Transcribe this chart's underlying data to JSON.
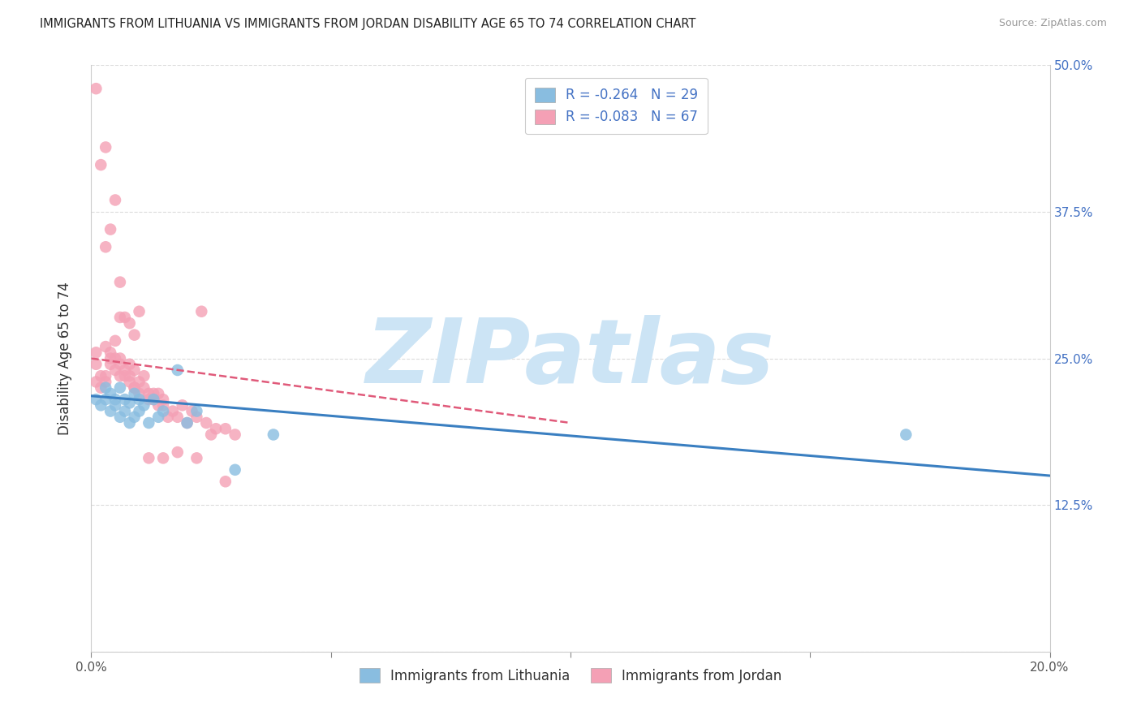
{
  "title": "IMMIGRANTS FROM LITHUANIA VS IMMIGRANTS FROM JORDAN DISABILITY AGE 65 TO 74 CORRELATION CHART",
  "source": "Source: ZipAtlas.com",
  "ylabel": "Disability Age 65 to 74",
  "legend_label_blue": "Immigrants from Lithuania",
  "legend_label_pink": "Immigrants from Jordan",
  "R_blue": -0.264,
  "N_blue": 29,
  "R_pink": -0.083,
  "N_pink": 67,
  "xmin": 0.0,
  "xmax": 0.2,
  "ymin": 0.0,
  "ymax": 0.5,
  "yticks": [
    0.0,
    0.125,
    0.25,
    0.375,
    0.5
  ],
  "xticks": [
    0.0,
    0.05,
    0.1,
    0.15,
    0.2
  ],
  "ytick_labels_right": [
    "",
    "12.5%",
    "25.0%",
    "37.5%",
    "50.0%"
  ],
  "color_blue": "#89bde0",
  "color_pink": "#f4a0b5",
  "line_color_blue": "#3a7fc1",
  "line_color_pink": "#e05a7a",
  "watermark_color": "#cce4f5",
  "watermark_text": "ZIPatlas",
  "background_color": "#ffffff",
  "grid_color": "#cccccc",
  "blue_line_x0": 0.0,
  "blue_line_y0": 0.218,
  "blue_line_x1": 0.2,
  "blue_line_y1": 0.15,
  "pink_line_x0": 0.0,
  "pink_line_y0": 0.25,
  "pink_line_x1": 0.1,
  "pink_line_y1": 0.195,
  "blue_points_x": [
    0.001,
    0.002,
    0.003,
    0.003,
    0.004,
    0.004,
    0.005,
    0.005,
    0.006,
    0.006,
    0.007,
    0.007,
    0.008,
    0.008,
    0.009,
    0.009,
    0.01,
    0.01,
    0.011,
    0.012,
    0.013,
    0.014,
    0.015,
    0.018,
    0.02,
    0.022,
    0.03,
    0.038,
    0.17
  ],
  "blue_points_y": [
    0.215,
    0.21,
    0.225,
    0.215,
    0.22,
    0.205,
    0.215,
    0.21,
    0.225,
    0.2,
    0.215,
    0.205,
    0.212,
    0.195,
    0.22,
    0.2,
    0.215,
    0.205,
    0.21,
    0.195,
    0.215,
    0.2,
    0.205,
    0.24,
    0.195,
    0.205,
    0.155,
    0.185,
    0.185
  ],
  "pink_points_x": [
    0.001,
    0.001,
    0.001,
    0.002,
    0.002,
    0.003,
    0.003,
    0.003,
    0.004,
    0.004,
    0.004,
    0.005,
    0.005,
    0.005,
    0.006,
    0.006,
    0.006,
    0.007,
    0.007,
    0.008,
    0.008,
    0.008,
    0.009,
    0.009,
    0.009,
    0.01,
    0.01,
    0.011,
    0.011,
    0.012,
    0.012,
    0.013,
    0.013,
    0.014,
    0.014,
    0.015,
    0.015,
    0.016,
    0.017,
    0.018,
    0.019,
    0.02,
    0.021,
    0.022,
    0.023,
    0.024,
    0.025,
    0.026,
    0.028,
    0.03,
    0.001,
    0.002,
    0.003,
    0.003,
    0.004,
    0.005,
    0.006,
    0.007,
    0.008,
    0.01,
    0.006,
    0.009,
    0.012,
    0.015,
    0.018,
    0.022,
    0.028
  ],
  "pink_points_y": [
    0.255,
    0.245,
    0.23,
    0.225,
    0.235,
    0.235,
    0.23,
    0.26,
    0.25,
    0.245,
    0.255,
    0.25,
    0.24,
    0.265,
    0.245,
    0.235,
    0.25,
    0.24,
    0.235,
    0.245,
    0.23,
    0.235,
    0.225,
    0.24,
    0.225,
    0.23,
    0.22,
    0.235,
    0.225,
    0.22,
    0.215,
    0.22,
    0.215,
    0.22,
    0.21,
    0.21,
    0.215,
    0.2,
    0.205,
    0.2,
    0.21,
    0.195,
    0.205,
    0.2,
    0.29,
    0.195,
    0.185,
    0.19,
    0.19,
    0.185,
    0.48,
    0.415,
    0.43,
    0.345,
    0.36,
    0.385,
    0.285,
    0.285,
    0.28,
    0.29,
    0.315,
    0.27,
    0.165,
    0.165,
    0.17,
    0.165,
    0.145
  ]
}
